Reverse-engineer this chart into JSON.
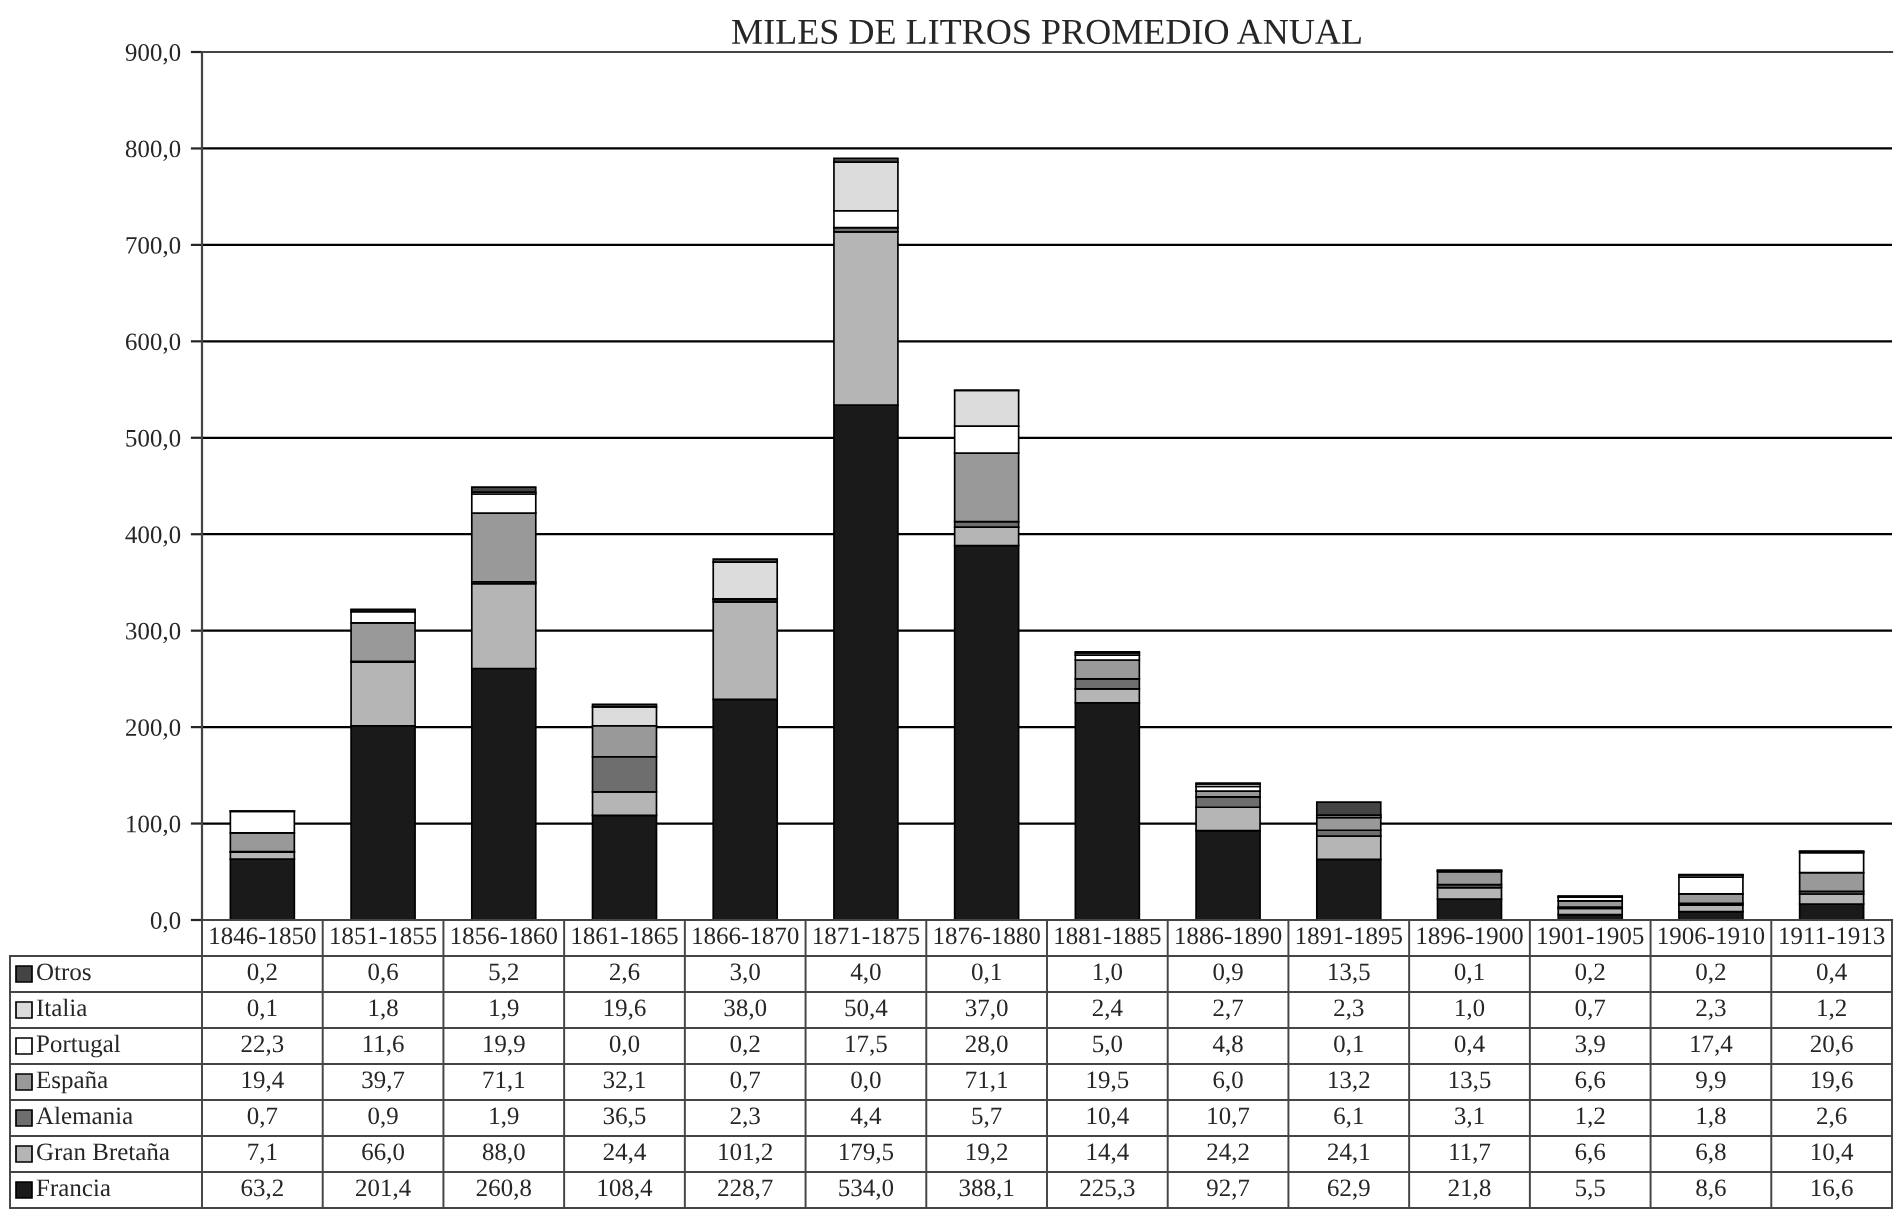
{
  "chart_data": {
    "type": "bar",
    "title": "MILES DE LITROS PROMEDIO ANUAL",
    "stacked": true,
    "grid": "y",
    "legend": "bottom",
    "categories": [
      "1846-1850",
      "1851-1855",
      "1856-1860",
      "1861-1865",
      "1866-1870",
      "1871-1875",
      "1876-1880",
      "1881-1885",
      "1886-1890",
      "1891-1895",
      "1896-1900",
      "1901-1905",
      "1906-1910",
      "1911-1913"
    ],
    "ylim": [
      0,
      900
    ],
    "yticks": [
      {
        "value": 0,
        "label": "0,0"
      },
      {
        "value": 100,
        "label": "100,0"
      },
      {
        "value": 200,
        "label": "200,0"
      },
      {
        "value": 300,
        "label": "300,0"
      },
      {
        "value": 400,
        "label": "400,0"
      },
      {
        "value": 500,
        "label": "500,0"
      },
      {
        "value": 600,
        "label": "600,0"
      },
      {
        "value": 700,
        "label": "700,0"
      },
      {
        "value": 800,
        "label": "800,0"
      },
      {
        "value": 900,
        "label": "900,0"
      }
    ],
    "series": [
      {
        "name": "Francia",
        "color": "#1a1a1a",
        "values": [
          63.2,
          201.4,
          260.8,
          108.4,
          228.7,
          534.0,
          388.1,
          225.3,
          92.7,
          62.9,
          21.8,
          5.5,
          8.6,
          16.6
        ],
        "value_labels": [
          "63,2",
          "201,4",
          "260,8",
          "108,4",
          "228,7",
          "534,0",
          "388,1",
          "225,3",
          "92,7",
          "62,9",
          "21,8",
          "5,5",
          "8,6",
          "16,6"
        ]
      },
      {
        "name": "Gran Bretaña",
        "color": "#b5b5b5",
        "values": [
          7.1,
          66.0,
          88.0,
          24.4,
          101.2,
          179.5,
          19.2,
          14.4,
          24.2,
          24.1,
          11.7,
          6.6,
          6.8,
          10.4
        ],
        "value_labels": [
          "7,1",
          "66,0",
          "88,0",
          "24,4",
          "101,2",
          "179,5",
          "19,2",
          "14,4",
          "24,2",
          "24,1",
          "11,7",
          "6,6",
          "6,8",
          "10,4"
        ]
      },
      {
        "name": "Alemania",
        "color": "#6e6e6e",
        "values": [
          0.7,
          0.9,
          1.9,
          36.5,
          2.3,
          4.4,
          5.7,
          10.4,
          10.7,
          6.1,
          3.1,
          1.2,
          1.8,
          2.6
        ],
        "value_labels": [
          "0,7",
          "0,9",
          "1,9",
          "36,5",
          "2,3",
          "4,4",
          "5,7",
          "10,4",
          "10,7",
          "6,1",
          "3,1",
          "1,2",
          "1,8",
          "2,6"
        ]
      },
      {
        "name": "España",
        "color": "#999999",
        "values": [
          19.4,
          39.7,
          71.1,
          32.1,
          0.7,
          0.0,
          71.1,
          19.5,
          6.0,
          13.2,
          13.5,
          6.6,
          9.9,
          19.6
        ],
        "value_labels": [
          "19,4",
          "39,7",
          "71,1",
          "32,1",
          "0,7",
          "0,0",
          "71,1",
          "19,5",
          "6,0",
          "13,2",
          "13,5",
          "6,6",
          "9,9",
          "19,6"
        ]
      },
      {
        "name": "Portugal",
        "color": "#ffffff",
        "values": [
          22.3,
          11.6,
          19.9,
          0.0,
          0.2,
          17.5,
          28.0,
          5.0,
          4.8,
          0.1,
          0.4,
          3.9,
          17.4,
          20.6
        ],
        "value_labels": [
          "22,3",
          "11,6",
          "19,9",
          "0,0",
          "0,2",
          "17,5",
          "28,0",
          "5,0",
          "4,8",
          "0,1",
          "0,4",
          "3,9",
          "17,4",
          "20,6"
        ]
      },
      {
        "name": "Italia",
        "color": "#dcdcdc",
        "values": [
          0.1,
          1.8,
          1.9,
          19.6,
          38.0,
          50.4,
          37.0,
          2.4,
          2.7,
          2.3,
          1.0,
          0.7,
          2.3,
          1.2
        ],
        "value_labels": [
          "0,1",
          "1,8",
          "1,9",
          "19,6",
          "38,0",
          "50,4",
          "37,0",
          "2,4",
          "2,7",
          "2,3",
          "1,0",
          "0,7",
          "2,3",
          "1,2"
        ]
      },
      {
        "name": "Otros",
        "color": "#444444",
        "values": [
          0.2,
          0.6,
          5.2,
          2.6,
          3.0,
          4.0,
          0.1,
          1.0,
          0.9,
          13.5,
          0.1,
          0.2,
          0.2,
          0.4
        ],
        "value_labels": [
          "0,2",
          "0,6",
          "5,2",
          "2,6",
          "3,0",
          "4,0",
          "0,1",
          "1,0",
          "0,9",
          "13,5",
          "0,1",
          "0,2",
          "0,2",
          "0,4"
        ]
      }
    ]
  }
}
